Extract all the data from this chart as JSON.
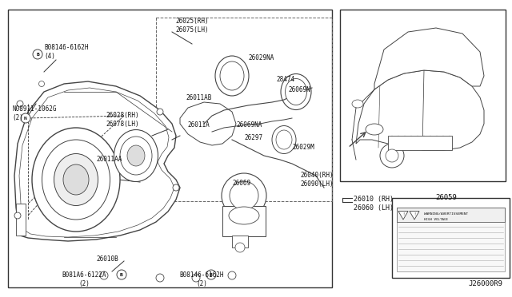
{
  "bg_color": "#f5f5f0",
  "border_color": "#333333",
  "line_color": "#444444",
  "text_color": "#111111",
  "diagram_id": "J26000R9",
  "figsize": [
    6.4,
    3.72
  ],
  "dpi": 100,
  "labels": {
    "bolt_top_left": "B08146-6162H\n(4)",
    "nut_left": "N08911-1062G\n(2)",
    "part_26028": "26028(RH)\n26078(LH)",
    "part_26011AB": "26011AB",
    "part_26025": "26025(RH)\n26075(LH)",
    "part_26029NA": "26029NA",
    "part_28474": "28474",
    "part_26069N": "26069N",
    "part_26011A": "26011A",
    "part_26069NA": "26069NA",
    "part_26297": "26297",
    "part_26029M": "26029M",
    "part_26011AA": "26011AA",
    "part_26069": "26069",
    "part_26040": "26040(RH)\n26090(LH)",
    "part_26010B": "26010B",
    "bolt_bottom_left": "B081A6-6122A\n(2)",
    "bolt_bottom_right": "B08146-6162H\n(2)",
    "part_26010": "26010 (RH)\n26060 (LH)",
    "part_26059": "26059"
  }
}
